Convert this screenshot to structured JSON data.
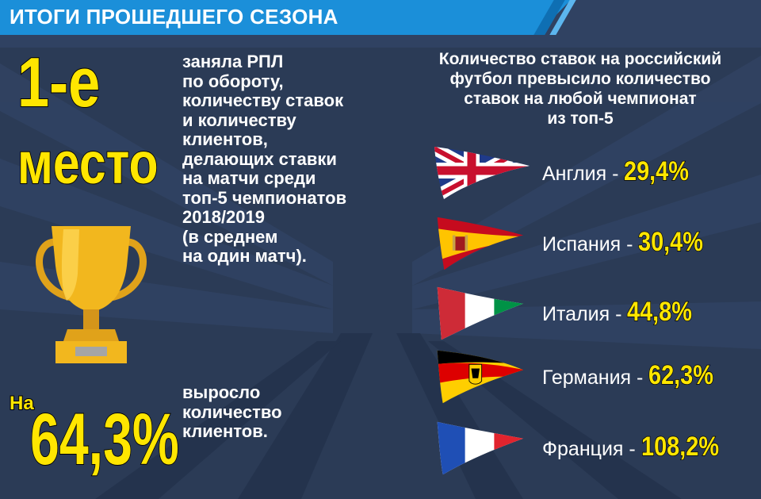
{
  "header": {
    "title": "ИТОГИ ПРОШЕДШЕГО СЕЗОНА"
  },
  "colors": {
    "accent": "#ffe600",
    "header": "#1b8fd9",
    "background": "#2d3e59"
  },
  "left": {
    "place_num": "1-е",
    "place_word": "место",
    "description_lines": [
      "заняла РПЛ",
      "по обороту,",
      "количеству ставок",
      "и количеству",
      "клиентов,",
      "делающих ставки",
      "на матчи среди",
      "топ-5 чемпионатов",
      "2018/2019",
      "(в среднем",
      "на один матч)."
    ],
    "trophy_icon": "trophy-icon",
    "growth_prefix": "На",
    "growth_value": "64,3%",
    "growth_lines": [
      "выросло",
      "количество",
      "клиентов."
    ]
  },
  "right": {
    "heading_lines": [
      "Количество ставок на российский",
      "футбол превысило количество",
      "ставок на любой чемпионат",
      "из топ-5"
    ],
    "countries": [
      {
        "flag": "uk-flag-icon",
        "name": "Англия - ",
        "value": "29,4%"
      },
      {
        "flag": "spain-flag-icon",
        "name": "Испания - ",
        "value": "30,4%"
      },
      {
        "flag": "italy-flag-icon",
        "name": "Италия - ",
        "value": "44,8%"
      },
      {
        "flag": "germany-flag-icon",
        "name": "Германия - ",
        "value": "62,3%"
      },
      {
        "flag": "france-flag-icon",
        "name": "Франция - ",
        "value": "108,2%"
      }
    ]
  }
}
